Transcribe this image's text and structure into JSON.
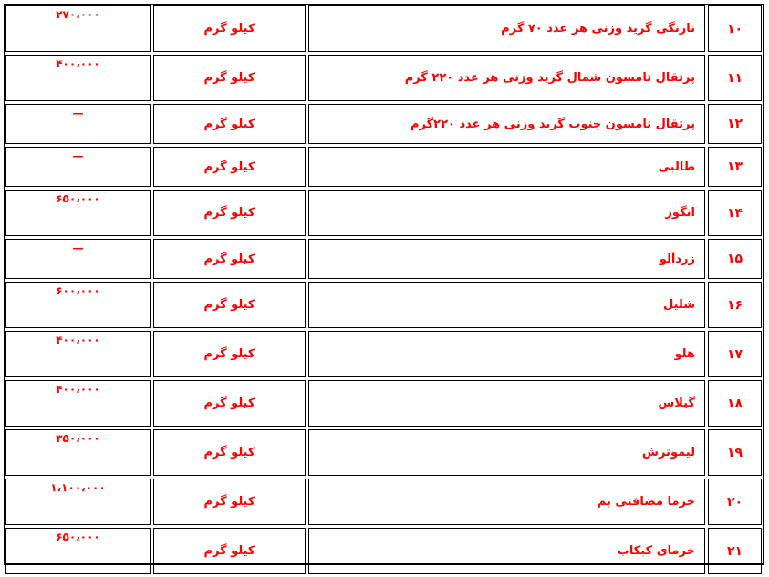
{
  "rows": [
    {
      "num": "۱۰",
      "name": "نارنگی گرید وزنی هر عدد ۷۰ گرم",
      "unit": "کیلو گرم",
      "price": "۲۷۰،۰۰۰"
    },
    {
      "num": "۱۱",
      "name": "پرتقال تامسون شمال گرید وزنی هر عدد ۲۲۰ گرم",
      "unit": "کیلو گرم",
      "price": "۴۰۰،۰۰۰"
    },
    {
      "num": "۱۲",
      "name": "پرتقال تامسون جنوب گرید وزنی هر عدد ۲۲۰گرم",
      "unit": "کیلو گرم",
      "price": "—"
    },
    {
      "num": "۱۳",
      "name": "طالبی",
      "unit": "کیلو گرم",
      "price": "—"
    },
    {
      "num": "۱۴",
      "name": "انگور",
      "unit": "کیلو گرم",
      "price": "۶۵۰،۰۰۰"
    },
    {
      "num": "۱۵",
      "name": "زردآلو",
      "unit": "کیلو گرم",
      "price": "—"
    },
    {
      "num": "۱۶",
      "name": "شلیل",
      "unit": "کیلو گرم",
      "price": "۶۰۰،۰۰۰"
    },
    {
      "num": "۱۷",
      "name": "هلو",
      "unit": "کیلو گرم",
      "price": "۴۰۰،۰۰۰"
    },
    {
      "num": "۱۸",
      "name": "گیلاس",
      "unit": "کیلو گرم",
      "price": "۴۰۰،۰۰۰"
    },
    {
      "num": "۱۹",
      "name": "لیموترش",
      "unit": "کیلو گرم",
      "price": "۳۵۰،۰۰۰"
    },
    {
      "num": "۲۰",
      "name": "خرما مضافتی بم",
      "unit": "کیلو گرم",
      "price": "۱،۱۰۰،۰۰۰"
    },
    {
      "num": "۲۱",
      "name": "خرمای کبکاب",
      "unit": "کیلو گرم",
      "price": "۶۵۰،۰۰۰"
    }
  ]
}
